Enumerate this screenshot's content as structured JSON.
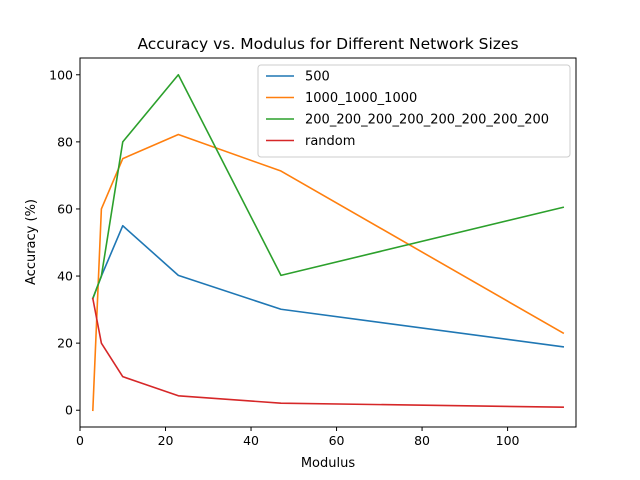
{
  "chart_data": {
    "type": "line",
    "title": "Accuracy vs. Modulus for Different Network Sizes",
    "xlabel": "Modulus",
    "ylabel": "Accuracy (%)",
    "xlim": [
      0,
      116
    ],
    "ylim": [
      -5,
      105
    ],
    "xticks": [
      0,
      20,
      40,
      60,
      80,
      100
    ],
    "yticks": [
      0,
      20,
      40,
      60,
      80,
      100
    ],
    "grid": false,
    "legend_position": "top-right",
    "series": [
      {
        "name": "500",
        "color": "#1f77b4",
        "x": [
          3,
          5,
          10,
          23,
          47,
          113
        ],
        "y": [
          33.3,
          40,
          55,
          40.2,
          30.1,
          18.9
        ]
      },
      {
        "name": "1000_1000_1000",
        "color": "#ff7f0e",
        "x": [
          3,
          5,
          10,
          23,
          47,
          113
        ],
        "y": [
          0,
          60,
          75,
          82.2,
          71.3,
          23
        ]
      },
      {
        "name": "200_200_200_200_200_200_200_200",
        "color": "#2ca02c",
        "x": [
          3,
          5,
          10,
          23,
          47,
          113
        ],
        "y": [
          33.3,
          40,
          80,
          100,
          40.2,
          60.5
        ]
      },
      {
        "name": "random",
        "color": "#d62728",
        "x": [
          3,
          5,
          10,
          23,
          47,
          113
        ],
        "y": [
          33.3,
          20,
          10,
          4.3,
          2.1,
          0.9
        ]
      }
    ]
  }
}
